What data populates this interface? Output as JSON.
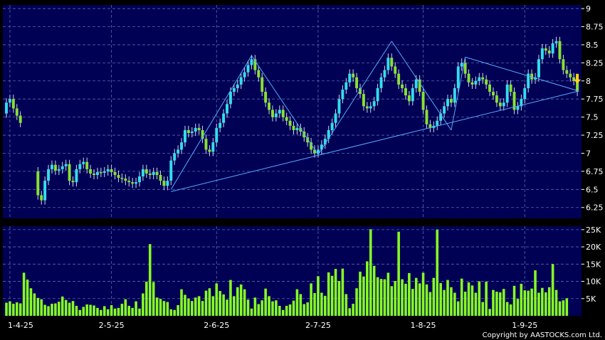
{
  "copyright": "Copyright by AASTOCKS.com Ltd.",
  "colors": {
    "background": "#000000",
    "panel": "#000055",
    "grid": "#5a6aa8",
    "up_candle": "#33ddee",
    "down_candle": "#88e033",
    "wick": "#cfd8e6",
    "volume_bar": "#88ff22",
    "trendline": "#55aaff",
    "arrow": "#ffd21a"
  },
  "chart_data": [
    {
      "type": "candlestick",
      "panel": "price",
      "title": "",
      "ylim": [
        6.1,
        9.05
      ],
      "y_ticks": [
        6.25,
        6.5,
        6.75,
        7,
        7.25,
        7.5,
        7.75,
        8,
        8.25,
        8.5,
        8.75,
        9
      ],
      "y_tick_labels": [
        "6.25",
        "6.5",
        "6.75",
        "7",
        "7.25",
        "7.5",
        "7.75",
        "8",
        "8.25",
        "8.5",
        "8.75",
        "9"
      ],
      "x_tick_labels": [
        "1-4-25",
        "2-5-25",
        "2-6-25",
        "2-7-25",
        "1-8-25",
        "1-9-25"
      ],
      "x_tick_index": [
        1,
        30,
        60,
        89,
        119,
        148
      ],
      "grid": true,
      "close": [
        7.7,
        7.75,
        7.62,
        7.52,
        7.42,
        null,
        null,
        null,
        null,
        6.42,
        6.35,
        6.62,
        6.78,
        6.84,
        6.76,
        6.78,
        6.82,
        6.85,
        6.62,
        6.6,
        6.78,
        6.85,
        6.88,
        6.78,
        6.72,
        6.7,
        6.74,
        6.73,
        6.75,
        6.78,
        6.74,
        6.7,
        6.66,
        6.65,
        6.62,
        6.6,
        6.58,
        6.6,
        6.68,
        6.78,
        6.72,
        6.7,
        6.74,
        6.7,
        6.62,
        6.55,
        6.62,
        6.9,
        7.0,
        7.05,
        7.15,
        7.32,
        7.28,
        7.3,
        7.35,
        7.32,
        7.2,
        7.05,
        7.02,
        7.15,
        7.35,
        7.42,
        7.55,
        7.68,
        7.85,
        7.9,
        7.95,
        8.05,
        8.12,
        8.22,
        8.3,
        8.15,
        8.05,
        7.85,
        7.7,
        7.6,
        7.5,
        7.55,
        7.6,
        7.5,
        7.45,
        7.38,
        7.32,
        7.35,
        7.3,
        7.22,
        7.15,
        7.05,
        7.0,
        7.05,
        7.12,
        7.2,
        7.32,
        7.42,
        7.55,
        7.75,
        7.88,
        7.98,
        8.1,
        8.05,
        7.9,
        7.82,
        7.65,
        7.62,
        7.65,
        7.72,
        7.9,
        8.05,
        8.15,
        8.32,
        8.2,
        8.1,
        7.95,
        7.9,
        7.8,
        7.72,
        7.9,
        8.02,
        7.85,
        7.6,
        7.4,
        7.35,
        7.38,
        7.45,
        7.55,
        7.65,
        7.75,
        7.7,
        7.9,
        8.2,
        8.25,
        8.1,
        7.98,
        7.95,
        8.0,
        8.05,
        8.02,
        7.95,
        7.85,
        7.8,
        7.7,
        7.65,
        7.7,
        7.95,
        7.85,
        7.6,
        7.65,
        7.75,
        7.9,
        8.1,
        8.02,
        8.05,
        8.3,
        8.45,
        8.42,
        8.38,
        8.52,
        8.55,
        8.3,
        8.15,
        8.1,
        8.05,
        8.0,
        7.85
      ],
      "open": [
        7.55,
        7.7,
        7.75,
        7.62,
        7.52,
        null,
        null,
        null,
        null,
        6.75,
        6.42,
        6.35,
        6.62,
        6.78,
        6.84,
        6.76,
        6.78,
        6.82,
        6.85,
        6.62,
        6.6,
        6.78,
        6.85,
        6.88,
        6.78,
        6.72,
        6.7,
        6.74,
        6.73,
        6.75,
        6.78,
        6.74,
        6.7,
        6.66,
        6.65,
        6.62,
        6.6,
        6.58,
        6.6,
        6.68,
        6.78,
        6.72,
        6.7,
        6.74,
        6.7,
        6.62,
        6.55,
        6.62,
        6.9,
        7.0,
        7.05,
        7.15,
        7.32,
        7.28,
        7.3,
        7.35,
        7.32,
        7.2,
        7.05,
        7.02,
        7.15,
        7.35,
        7.42,
        7.55,
        7.68,
        7.85,
        7.9,
        7.95,
        8.05,
        8.12,
        8.22,
        8.3,
        8.15,
        8.05,
        7.85,
        7.7,
        7.6,
        7.5,
        7.55,
        7.6,
        7.5,
        7.45,
        7.38,
        7.32,
        7.35,
        7.3,
        7.22,
        7.15,
        7.05,
        7.0,
        7.05,
        7.12,
        7.2,
        7.32,
        7.42,
        7.55,
        7.75,
        7.88,
        7.98,
        8.1,
        8.05,
        7.9,
        7.82,
        7.65,
        7.62,
        7.65,
        7.72,
        7.9,
        8.05,
        8.15,
        8.32,
        8.2,
        8.1,
        7.95,
        7.9,
        7.8,
        7.72,
        7.9,
        8.02,
        7.85,
        7.6,
        7.4,
        7.35,
        7.38,
        7.45,
        7.55,
        7.65,
        7.75,
        7.7,
        7.9,
        8.2,
        8.25,
        8.1,
        7.98,
        7.95,
        8.0,
        8.05,
        8.02,
        7.95,
        7.85,
        7.8,
        7.7,
        7.65,
        7.7,
        7.95,
        7.85,
        7.6,
        7.65,
        7.75,
        7.9,
        8.1,
        8.02,
        8.05,
        8.3,
        8.45,
        8.42,
        8.38,
        8.52,
        8.55,
        8.3,
        8.15,
        8.1,
        8.05,
        8.0
      ]
    },
    {
      "type": "bar",
      "panel": "volume",
      "title": "",
      "ylim": [
        0,
        26000
      ],
      "y_ticks": [
        5000,
        10000,
        15000,
        20000,
        25000
      ],
      "y_tick_labels": [
        "5K",
        "10K",
        "15K",
        "20K",
        "25K"
      ],
      "values": [
        3800,
        4200,
        3500,
        3900,
        3600,
        12500,
        10500,
        8000,
        6500,
        5200,
        4800,
        3200,
        2800,
        3500,
        3600,
        4100,
        5600,
        4600,
        3800,
        4300,
        2900,
        1700,
        2600,
        3300,
        3200,
        3000,
        2300,
        1700,
        2800,
        1900,
        3100,
        2100,
        2300,
        3500,
        4800,
        2900,
        2300,
        4200,
        2100,
        6500,
        9900,
        20800,
        9800,
        5300,
        4900,
        4300,
        4000,
        1900,
        1700,
        3100,
        7700,
        6100,
        5000,
        4300,
        5300,
        5700,
        4300,
        7300,
        8000,
        5700,
        9400,
        7200,
        6200,
        4700,
        10400,
        5700,
        8300,
        9100,
        7700,
        4700,
        2100,
        5300,
        3400,
        4500,
        7900,
        5700,
        4200,
        4500,
        2900,
        1700,
        2900,
        3300,
        4400,
        7700,
        6300,
        3400,
        3900,
        9400,
        6600,
        11500,
        6700,
        5800,
        12600,
        11600,
        13600,
        10100,
        13700,
        6300,
        2200,
        3500,
        8000,
        12800,
        11400,
        15800,
        25100,
        14500,
        11200,
        10700,
        10600,
        12500,
        8600,
        10100,
        24400,
        10600,
        9300,
        12400,
        7800,
        11000,
        9400,
        12500,
        9100,
        6900,
        11000,
        25000,
        9500,
        7500,
        10400,
        8300,
        6700,
        4200,
        10800,
        7000,
        9700,
        8800,
        6700,
        10000,
        4000,
        9900,
        2000,
        7500,
        7000,
        6800,
        7800,
        4000,
        3300,
        8700,
        4900,
        9300,
        7400,
        7300,
        7900,
        13200,
        6700,
        8100,
        6800,
        8300,
        15000,
        7500,
        4200,
        4500,
        5100
      ]
    }
  ]
}
